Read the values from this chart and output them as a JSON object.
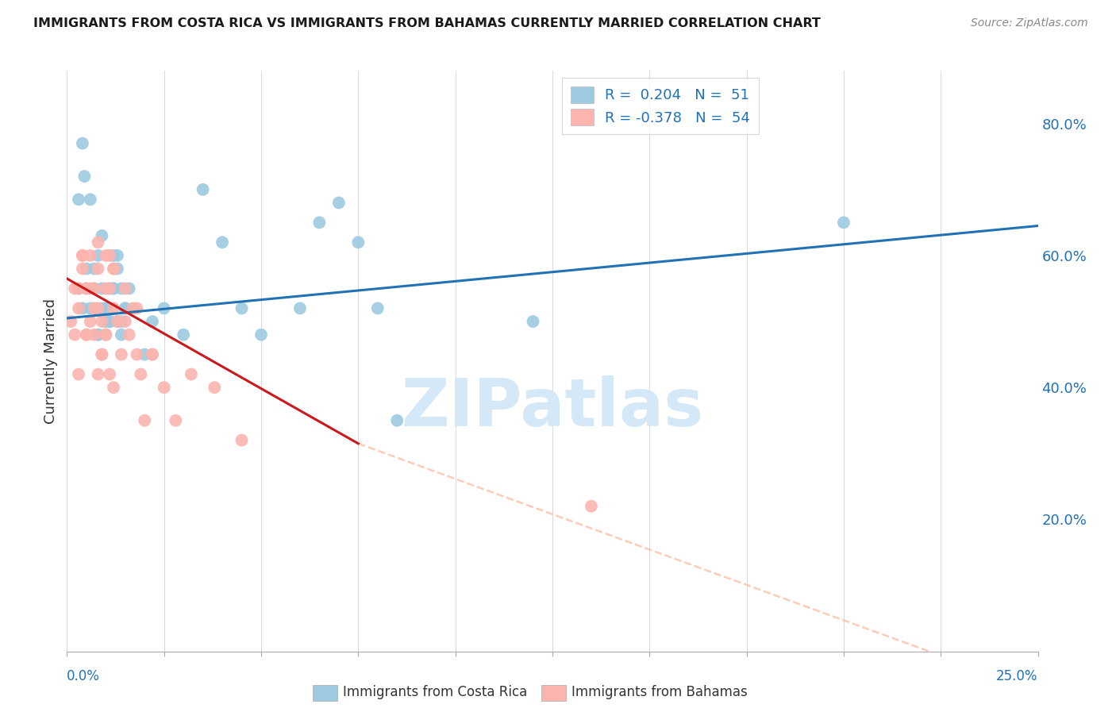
{
  "title": "IMMIGRANTS FROM COSTA RICA VS IMMIGRANTS FROM BAHAMAS CURRENTLY MARRIED CORRELATION CHART",
  "source": "Source: ZipAtlas.com",
  "ylabel": "Currently Married",
  "legend_blue_r": "0.204",
  "legend_blue_n": "51",
  "legend_pink_r": "-0.378",
  "legend_pink_n": "54",
  "blue_scatter_color": "#9ecae1",
  "pink_scatter_color": "#fbb4ae",
  "blue_line_color": "#2171b5",
  "pink_line_color": "#cb181d",
  "pink_dash_color": "#fcbba1",
  "right_tick_color": "#2171b5",
  "watermark_text": "ZIPatlas",
  "watermark_color": "#d4e8f8",
  "xlim": [
    0.0,
    0.25
  ],
  "ylim": [
    0.0,
    0.88
  ],
  "blue_trend": [
    0.0,
    0.505,
    0.25,
    0.645
  ],
  "pink_trend_solid": [
    0.0,
    0.565,
    0.075,
    0.315
  ],
  "pink_trend_dash": [
    0.075,
    0.315,
    0.25,
    -0.06
  ],
  "right_yticks": [
    0.2,
    0.4,
    0.6,
    0.8
  ],
  "right_ytick_labels": [
    "20.0%",
    "40.0%",
    "60.0%",
    "80.0%"
  ],
  "blue_x": [
    0.0045,
    0.003,
    0.006,
    0.008,
    0.004,
    0.005,
    0.007,
    0.009,
    0.01,
    0.011,
    0.012,
    0.013,
    0.014,
    0.015,
    0.016,
    0.008,
    0.009,
    0.01,
    0.011,
    0.012,
    0.013,
    0.014,
    0.003,
    0.004,
    0.005,
    0.006,
    0.007,
    0.008,
    0.009,
    0.01,
    0.011,
    0.012,
    0.013,
    0.014,
    0.015,
    0.02,
    0.022,
    0.025,
    0.03,
    0.035,
    0.04,
    0.045,
    0.05,
    0.06,
    0.065,
    0.07,
    0.075,
    0.08,
    0.085,
    0.12,
    0.2
  ],
  "blue_y": [
    0.72,
    0.685,
    0.685,
    0.6,
    0.77,
    0.55,
    0.58,
    0.63,
    0.5,
    0.55,
    0.6,
    0.58,
    0.55,
    0.52,
    0.55,
    0.48,
    0.52,
    0.48,
    0.5,
    0.55,
    0.6,
    0.5,
    0.55,
    0.52,
    0.58,
    0.52,
    0.55,
    0.48,
    0.55,
    0.52,
    0.5,
    0.55,
    0.5,
    0.48,
    0.52,
    0.45,
    0.5,
    0.52,
    0.48,
    0.7,
    0.62,
    0.52,
    0.48,
    0.52,
    0.65,
    0.68,
    0.62,
    0.52,
    0.35,
    0.5,
    0.65
  ],
  "pink_x": [
    0.001,
    0.002,
    0.002,
    0.003,
    0.003,
    0.004,
    0.004,
    0.005,
    0.005,
    0.006,
    0.006,
    0.007,
    0.007,
    0.008,
    0.008,
    0.009,
    0.009,
    0.01,
    0.01,
    0.011,
    0.011,
    0.012,
    0.012,
    0.013,
    0.014,
    0.015,
    0.016,
    0.017,
    0.018,
    0.019,
    0.02,
    0.022,
    0.025,
    0.028,
    0.032,
    0.038,
    0.045,
    0.008,
    0.01,
    0.012,
    0.015,
    0.018,
    0.022,
    0.003,
    0.004,
    0.005,
    0.006,
    0.007,
    0.008,
    0.009,
    0.01,
    0.011,
    0.012,
    0.135
  ],
  "pink_y": [
    0.5,
    0.48,
    0.55,
    0.42,
    0.52,
    0.58,
    0.6,
    0.48,
    0.55,
    0.5,
    0.6,
    0.55,
    0.48,
    0.52,
    0.58,
    0.45,
    0.5,
    0.55,
    0.48,
    0.6,
    0.55,
    0.52,
    0.58,
    0.5,
    0.45,
    0.55,
    0.48,
    0.52,
    0.45,
    0.42,
    0.35,
    0.45,
    0.4,
    0.35,
    0.42,
    0.4,
    0.32,
    0.62,
    0.6,
    0.58,
    0.5,
    0.52,
    0.45,
    0.55,
    0.6,
    0.48,
    0.55,
    0.52,
    0.42,
    0.45,
    0.48,
    0.42,
    0.4,
    0.22
  ]
}
